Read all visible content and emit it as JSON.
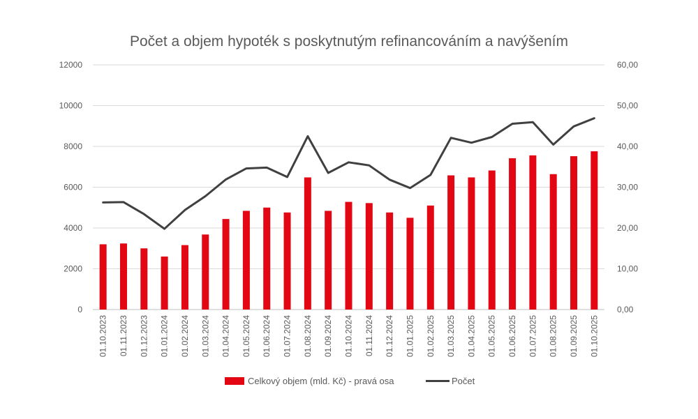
{
  "chart_data": {
    "type": "bar+line",
    "title": "Počet a objem hypoték s poskytnutým refinancováním a navýšením",
    "categories": [
      "01.10.2023",
      "01.11.2023",
      "01.12.2023",
      "01.01.2024",
      "01.02.2024",
      "01.03.2024",
      "01.04.2024",
      "01.05.2024",
      "01.06.2024",
      "01.07.2024",
      "01.08.2024",
      "01.09.2024",
      "01.10.2024",
      "01.11.2024",
      "01.12.2024",
      "01.01.2025",
      "01.02.2025",
      "01.03.2025",
      "01.04.2025",
      "01.05.2025",
      "01.06.2025",
      "01.07.2025",
      "01.08.2025",
      "01.09.2025",
      "01.10.2025"
    ],
    "y_left": {
      "min": 0,
      "max": 12000,
      "ticks": [
        "0",
        "2000",
        "4000",
        "6000",
        "8000",
        "10000",
        "12000"
      ]
    },
    "y_right": {
      "min": 0,
      "max": 60,
      "ticks": [
        "0,00",
        "10,00",
        "20,00",
        "30,00",
        "40,00",
        "50,00",
        "60,00"
      ]
    },
    "grid": true,
    "legend_position": "bottom",
    "series": [
      {
        "name": "Celkový objem (mld. Kč) - pravá osa",
        "type": "bar",
        "axis": "right",
        "color": "#e30613",
        "values": [
          16.0,
          16.2,
          15.0,
          13.0,
          15.8,
          18.4,
          22.2,
          24.2,
          25.0,
          23.8,
          32.4,
          24.2,
          26.4,
          26.1,
          23.8,
          22.5,
          25.5,
          32.9,
          32.4,
          34.1,
          37.1,
          37.8,
          33.2,
          37.6,
          38.8
        ]
      },
      {
        "name": "Počet",
        "type": "line",
        "axis": "left",
        "color": "#404040",
        "values": [
          5250,
          5270,
          4680,
          3960,
          4880,
          5560,
          6380,
          6920,
          6960,
          6500,
          8500,
          6700,
          7220,
          7070,
          6370,
          5960,
          6600,
          8420,
          8180,
          8460,
          9110,
          9190,
          8090,
          8980,
          9380
        ]
      }
    ]
  }
}
